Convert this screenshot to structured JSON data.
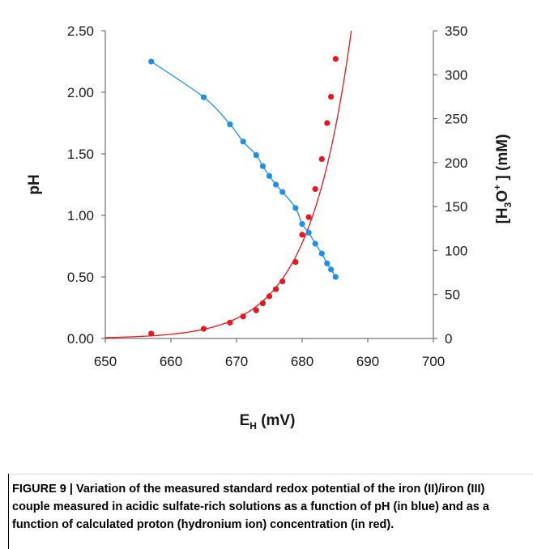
{
  "chart_data": {
    "type": "scatter",
    "xlabel_main": "E",
    "xlabel_sub": "H",
    "xlabel_rest": " (mV)",
    "ylabel_left": "pH",
    "ylabel_right_parts": [
      "[H",
      "3",
      "O",
      "+",
      " ]  (mM)"
    ],
    "xlim": [
      650,
      700
    ],
    "ylim_left": [
      0,
      2.5
    ],
    "ylim_right": [
      0,
      350
    ],
    "x_ticks": [
      "650",
      "660",
      "670",
      "680",
      "690",
      "700"
    ],
    "y_left_ticks": [
      "0.00",
      "0.50",
      "1.00",
      "1.50",
      "2.00",
      "2.50"
    ],
    "y_right_ticks": [
      "0",
      "50",
      "100",
      "150",
      "200",
      "250",
      "300",
      "350"
    ],
    "grid": false,
    "series": [
      {
        "axis": "left",
        "color": "#1f8fe8",
        "marker": "circle",
        "points": [
          [
            657,
            2.25
          ],
          [
            665,
            1.96
          ],
          [
            669,
            1.74
          ],
          [
            671,
            1.6
          ],
          [
            673,
            1.49
          ],
          [
            674,
            1.4
          ],
          [
            675,
            1.32
          ],
          [
            676,
            1.25
          ],
          [
            677,
            1.19
          ],
          [
            679,
            1.06
          ],
          [
            680,
            0.93
          ],
          [
            681,
            0.86
          ],
          [
            682,
            0.77
          ],
          [
            683,
            0.69
          ],
          [
            683.8,
            0.61
          ],
          [
            684.4,
            0.56
          ],
          [
            685.1,
            0.5
          ]
        ]
      },
      {
        "axis": "right",
        "color": "#e8161f",
        "marker": "circle",
        "points": [
          [
            657,
            5.6
          ],
          [
            665,
            11
          ],
          [
            669,
            18
          ],
          [
            671,
            25
          ],
          [
            673,
            32
          ],
          [
            674,
            40
          ],
          [
            675,
            48
          ],
          [
            676,
            56
          ],
          [
            677,
            65
          ],
          [
            679,
            87
          ],
          [
            680,
            118
          ],
          [
            681,
            138
          ],
          [
            682,
            170
          ],
          [
            683,
            204
          ],
          [
            683.8,
            245
          ],
          [
            684.4,
            275
          ],
          [
            685.1,
            318
          ]
        ]
      }
    ]
  },
  "caption": {
    "label": "FIGURE 9 | ",
    "text": "Variation of the measured standard redox potential of the iron (II)/iron (III) couple measured in acidic sulfate-rich solutions as a function of pH (in blue) and as a function of calculated proton (hydronium ion) concentration (in red)."
  }
}
